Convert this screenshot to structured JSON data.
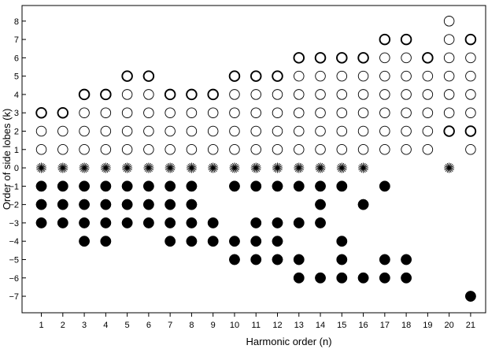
{
  "chart_data": {
    "type": "scatter",
    "title": "",
    "xlabel": "Harmonic order (n)",
    "ylabel": "Order of side lobes (k)",
    "xlim": [
      0.1,
      21.7
    ],
    "ylim": [
      -7.9,
      8.85
    ],
    "x_ticks": [
      "1",
      "2",
      "3",
      "4",
      "5",
      "6",
      "7",
      "8",
      "9",
      "10",
      "11",
      "12",
      "13",
      "14",
      "15",
      "16",
      "17",
      "18",
      "19",
      "20",
      "21"
    ],
    "y_ticks": [
      {
        "value": 8,
        "label": "8"
      },
      {
        "value": 7,
        "label": "7"
      },
      {
        "value": 6,
        "label": "6"
      },
      {
        "value": 5,
        "label": "5"
      },
      {
        "value": 4,
        "label": "4"
      },
      {
        "value": 3,
        "label": "3"
      },
      {
        "value": 2,
        "label": "2"
      },
      {
        "value": 1,
        "label": "1"
      },
      {
        "value": 0,
        "label": "0"
      },
      {
        "value": -1,
        "label": "−1"
      },
      {
        "value": -2,
        "label": "−2"
      },
      {
        "value": -3,
        "label": "−3"
      },
      {
        "value": -4,
        "label": "−4"
      },
      {
        "value": -5,
        "label": "−5"
      },
      {
        "value": -6,
        "label": "−6"
      },
      {
        "value": -7,
        "label": "−7"
      }
    ],
    "grid": false,
    "series": [
      {
        "marker": "open-circle-thin",
        "points": [
          [
            1,
            1
          ],
          [
            1,
            2
          ],
          [
            2,
            1
          ],
          [
            2,
            2
          ],
          [
            3,
            1
          ],
          [
            3,
            2
          ],
          [
            3,
            3
          ],
          [
            4,
            1
          ],
          [
            4,
            2
          ],
          [
            4,
            3
          ],
          [
            5,
            1
          ],
          [
            5,
            2
          ],
          [
            5,
            3
          ],
          [
            5,
            4
          ],
          [
            6,
            1
          ],
          [
            6,
            2
          ],
          [
            6,
            3
          ],
          [
            6,
            4
          ],
          [
            7,
            1
          ],
          [
            7,
            2
          ],
          [
            7,
            3
          ],
          [
            8,
            1
          ],
          [
            8,
            2
          ],
          [
            8,
            3
          ],
          [
            9,
            1
          ],
          [
            9,
            2
          ],
          [
            9,
            3
          ],
          [
            10,
            1
          ],
          [
            10,
            2
          ],
          [
            10,
            3
          ],
          [
            10,
            4
          ],
          [
            11,
            1
          ],
          [
            11,
            2
          ],
          [
            11,
            3
          ],
          [
            11,
            4
          ],
          [
            12,
            1
          ],
          [
            12,
            2
          ],
          [
            12,
            3
          ],
          [
            12,
            4
          ],
          [
            13,
            1
          ],
          [
            13,
            2
          ],
          [
            13,
            3
          ],
          [
            13,
            4
          ],
          [
            13,
            5
          ],
          [
            14,
            1
          ],
          [
            14,
            2
          ],
          [
            14,
            3
          ],
          [
            14,
            4
          ],
          [
            14,
            5
          ],
          [
            15,
            1
          ],
          [
            15,
            2
          ],
          [
            15,
            3
          ],
          [
            15,
            4
          ],
          [
            15,
            5
          ],
          [
            16,
            1
          ],
          [
            16,
            2
          ],
          [
            16,
            3
          ],
          [
            16,
            4
          ],
          [
            16,
            5
          ],
          [
            17,
            1
          ],
          [
            17,
            2
          ],
          [
            17,
            3
          ],
          [
            17,
            4
          ],
          [
            17,
            5
          ],
          [
            17,
            6
          ],
          [
            18,
            1
          ],
          [
            18,
            2
          ],
          [
            18,
            3
          ],
          [
            18,
            4
          ],
          [
            18,
            5
          ],
          [
            18,
            6
          ],
          [
            19,
            1
          ],
          [
            19,
            2
          ],
          [
            19,
            3
          ],
          [
            19,
            4
          ],
          [
            19,
            5
          ],
          [
            20,
            3
          ],
          [
            20,
            4
          ],
          [
            20,
            5
          ],
          [
            20,
            6
          ],
          [
            20,
            7
          ],
          [
            20,
            8
          ],
          [
            21,
            1
          ],
          [
            21,
            3
          ],
          [
            21,
            4
          ],
          [
            21,
            5
          ],
          [
            21,
            6
          ]
        ]
      },
      {
        "marker": "open-circle-thick",
        "points": [
          [
            1,
            3
          ],
          [
            2,
            3
          ],
          [
            3,
            4
          ],
          [
            4,
            4
          ],
          [
            5,
            5
          ],
          [
            6,
            5
          ],
          [
            7,
            4
          ],
          [
            8,
            4
          ],
          [
            9,
            4
          ],
          [
            10,
            5
          ],
          [
            11,
            5
          ],
          [
            12,
            5
          ],
          [
            13,
            6
          ],
          [
            14,
            6
          ],
          [
            15,
            6
          ],
          [
            16,
            6
          ],
          [
            17,
            7
          ],
          [
            18,
            7
          ],
          [
            19,
            6
          ],
          [
            20,
            2
          ],
          [
            21,
            2
          ],
          [
            21,
            7
          ]
        ]
      },
      {
        "marker": "asterisk",
        "points": [
          [
            1,
            0
          ],
          [
            2,
            0
          ],
          [
            3,
            0
          ],
          [
            4,
            0
          ],
          [
            5,
            0
          ],
          [
            6,
            0
          ],
          [
            7,
            0
          ],
          [
            8,
            0
          ],
          [
            9,
            0
          ],
          [
            10,
            0
          ],
          [
            11,
            0
          ],
          [
            12,
            0
          ],
          [
            13,
            0
          ],
          [
            14,
            0
          ],
          [
            15,
            0
          ],
          [
            16,
            0
          ],
          [
            20,
            0
          ]
        ]
      },
      {
        "marker": "filled-circle",
        "points": [
          [
            1,
            -1
          ],
          [
            1,
            -2
          ],
          [
            1,
            -3
          ],
          [
            2,
            -1
          ],
          [
            2,
            -2
          ],
          [
            2,
            -3
          ],
          [
            3,
            -1
          ],
          [
            3,
            -2
          ],
          [
            3,
            -3
          ],
          [
            3,
            -4
          ],
          [
            4,
            -1
          ],
          [
            4,
            -2
          ],
          [
            4,
            -3
          ],
          [
            4,
            -4
          ],
          [
            5,
            -1
          ],
          [
            5,
            -2
          ],
          [
            5,
            -3
          ],
          [
            6,
            -1
          ],
          [
            6,
            -2
          ],
          [
            6,
            -3
          ],
          [
            7,
            -1
          ],
          [
            7,
            -2
          ],
          [
            7,
            -3
          ],
          [
            7,
            -4
          ],
          [
            8,
            -1
          ],
          [
            8,
            -2
          ],
          [
            8,
            -3
          ],
          [
            8,
            -4
          ],
          [
            9,
            -3
          ],
          [
            9,
            -4
          ],
          [
            10,
            -1
          ],
          [
            10,
            -4
          ],
          [
            10,
            -5
          ],
          [
            11,
            -1
          ],
          [
            11,
            -3
          ],
          [
            11,
            -4
          ],
          [
            11,
            -5
          ],
          [
            12,
            -1
          ],
          [
            12,
            -3
          ],
          [
            12,
            -4
          ],
          [
            12,
            -5
          ],
          [
            13,
            -1
          ],
          [
            13,
            -3
          ],
          [
            13,
            -5
          ],
          [
            13,
            -6
          ],
          [
            14,
            -1
          ],
          [
            14,
            -2
          ],
          [
            14,
            -3
          ],
          [
            14,
            -6
          ],
          [
            15,
            -1
          ],
          [
            15,
            -4
          ],
          [
            15,
            -5
          ],
          [
            15,
            -6
          ],
          [
            16,
            -2
          ],
          [
            16,
            -6
          ],
          [
            17,
            -1
          ],
          [
            17,
            -5
          ],
          [
            17,
            -6
          ],
          [
            18,
            -5
          ],
          [
            18,
            -6
          ],
          [
            21,
            -7
          ]
        ]
      }
    ]
  }
}
